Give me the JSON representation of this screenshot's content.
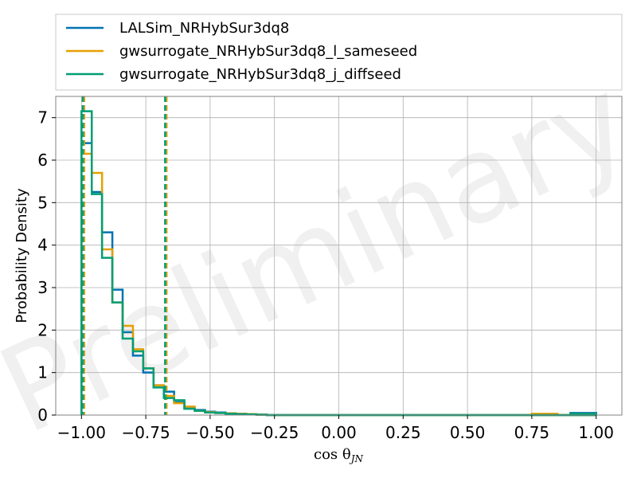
{
  "chart_data": {
    "type": "histogram",
    "xlabel": "cos θ",
    "xlabel_sub": "JN",
    "ylabel": "Probability Density",
    "watermark": "Preliminary",
    "xlim": [
      -1.1,
      1.1
    ],
    "ylim": [
      0,
      7.5
    ],
    "xticks": [
      -1.0,
      -0.75,
      -0.5,
      -0.25,
      0.0,
      0.25,
      0.5,
      0.75,
      1.0
    ],
    "xtick_labels": [
      "−1.00",
      "−0.75",
      "−0.50",
      "−0.25",
      "0.00",
      "0.25",
      "0.50",
      "0.75",
      "1.00"
    ],
    "yticks": [
      0,
      1,
      2,
      3,
      4,
      5,
      6,
      7
    ],
    "ytick_labels": [
      "0",
      "1",
      "2",
      "3",
      "4",
      "5",
      "6",
      "7"
    ],
    "grid": true,
    "legend_position": "top, outside plot",
    "bin_edges": [
      -1.0,
      -0.96,
      -0.92,
      -0.88,
      -0.84,
      -0.8,
      -0.76,
      -0.72,
      -0.68,
      -0.64,
      -0.6,
      -0.56,
      -0.52,
      -0.48,
      -0.44,
      -0.4,
      -0.36,
      -0.32,
      -0.28
    ],
    "series": [
      {
        "name": "LALSim_NRHybSur3dq8",
        "color": "#0072b2",
        "values": [
          6.4,
          5.25,
          4.3,
          2.95,
          1.95,
          1.4,
          1.0,
          0.7,
          0.55,
          0.3,
          0.15,
          0.12,
          0.08,
          0.06,
          0.04,
          0.03,
          0.02,
          0.01
        ],
        "tail": [
          {
            "x0": 0.9,
            "x1": 1.0,
            "value": 0.05
          }
        ],
        "ci": [
          -0.99,
          -0.67
        ]
      },
      {
        "name": "gwsurrogate_NRHybSur3dq8_l_sameseed",
        "color": "#e69f00",
        "values": [
          6.15,
          5.7,
          3.9,
          2.65,
          2.1,
          1.55,
          1.1,
          0.7,
          0.45,
          0.28,
          0.2,
          0.1,
          0.07,
          0.05,
          0.04,
          0.03,
          0.02,
          0.01
        ],
        "tail": [
          {
            "x0": 0.75,
            "x1": 0.85,
            "value": 0.03
          }
        ],
        "ci": [
          -0.99,
          -0.67
        ]
      },
      {
        "name": "gwsurrogate_NRHybSur3dq8_j_diffseed",
        "color": "#009e73",
        "values": [
          7.15,
          5.2,
          3.7,
          2.65,
          1.8,
          1.5,
          1.1,
          0.65,
          0.4,
          0.35,
          0.15,
          0.1,
          0.06,
          0.05,
          0.03,
          0.02,
          0.015,
          0.01
        ],
        "tail": [
          {
            "x0": 0.9,
            "x1": 1.0,
            "value": 0.03
          }
        ],
        "ci": [
          -0.995,
          -0.675
        ]
      }
    ]
  }
}
